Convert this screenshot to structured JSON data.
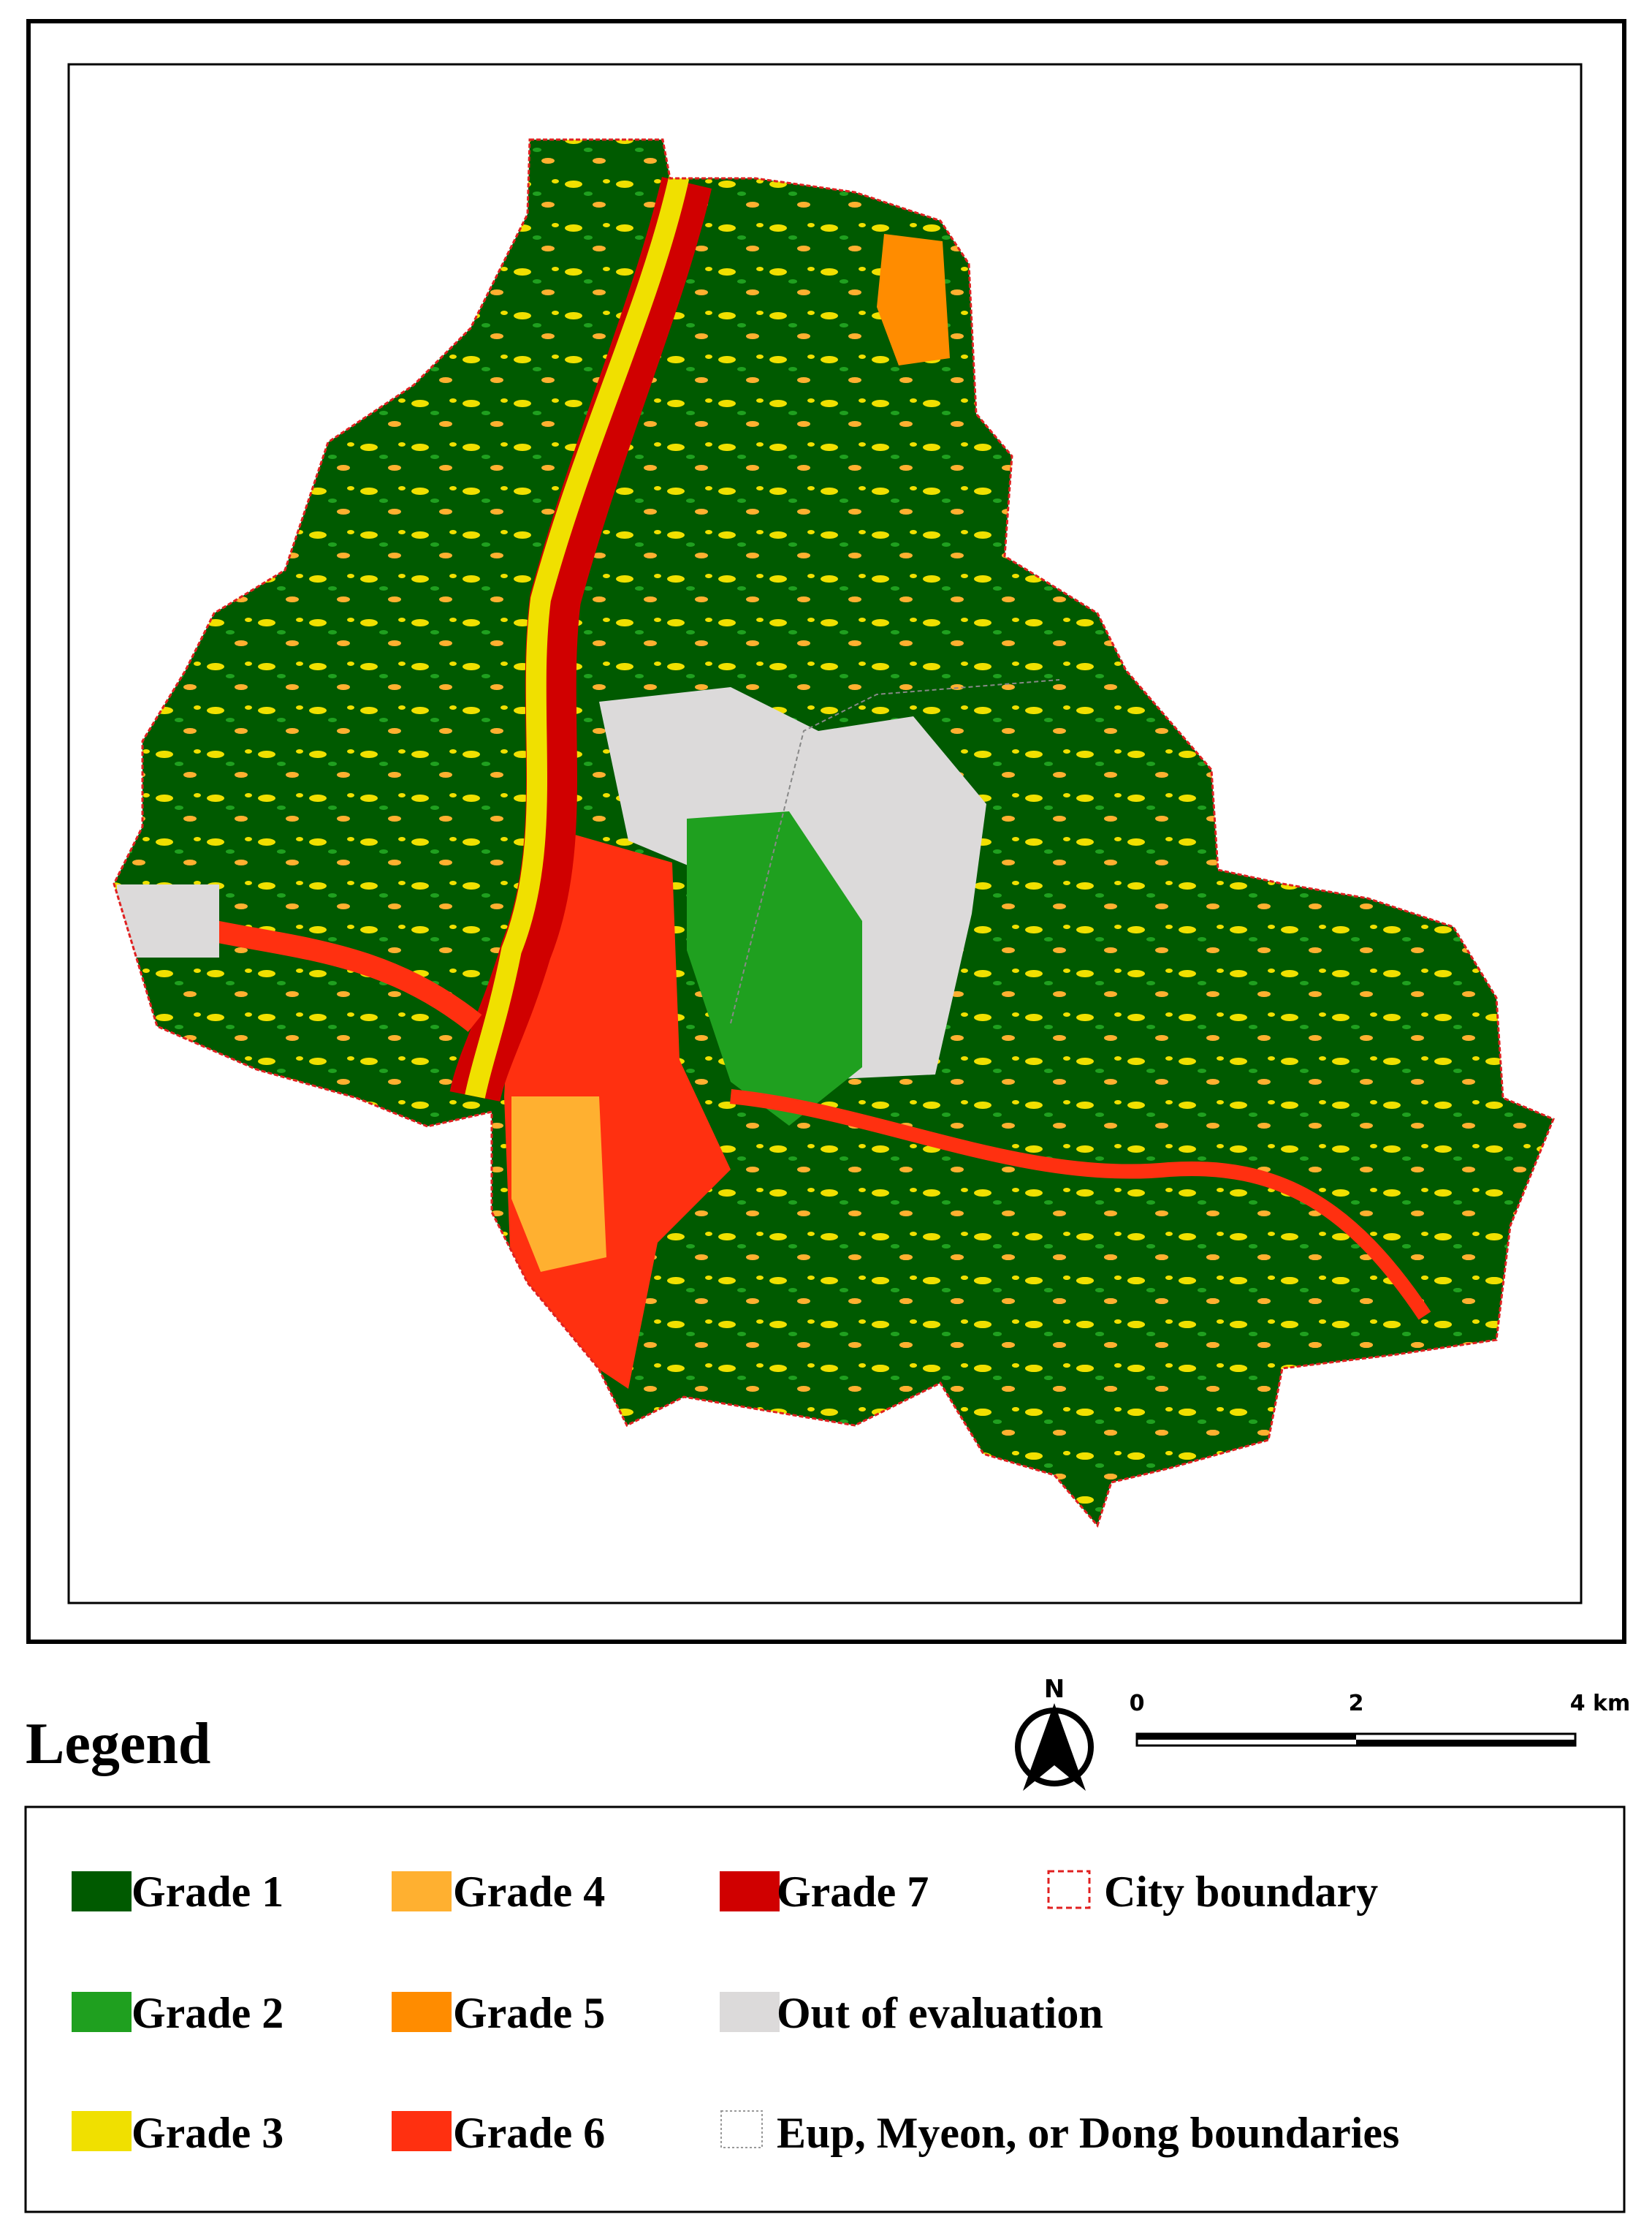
{
  "legend": {
    "title": "Legend",
    "items": [
      "Grade 1",
      "Grade 4",
      "Grade 7",
      "City boundary",
      "Grade 2",
      "Grade 5",
      "Out of evaluation",
      "Grade 3",
      "Grade 6",
      "Eup, Myeon, or Dong boundaries"
    ]
  },
  "north_arrow": {
    "label": "N"
  },
  "scale_bar": {
    "labels": [
      "0",
      "2",
      "4 km"
    ]
  }
}
